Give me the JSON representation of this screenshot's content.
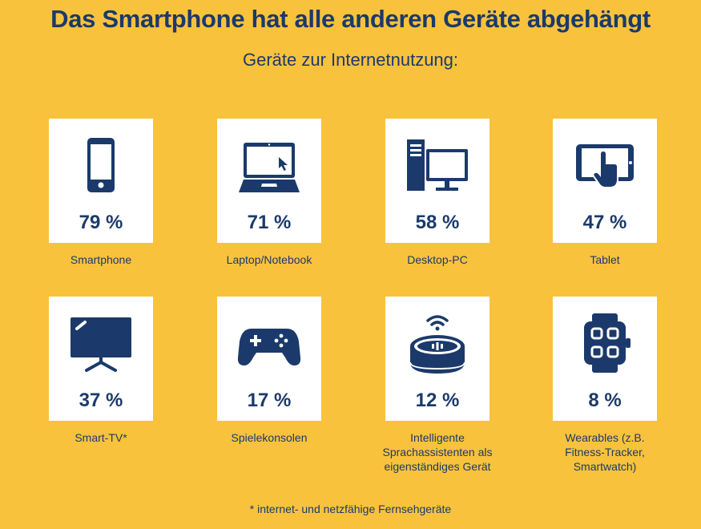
{
  "title": "Das Smartphone hat alle anderen Geräte abgehängt",
  "subtitle": "Geräte zur Internetnutzung:",
  "footnote": "* internet- und netzfähige Fernsehgeräte",
  "colors": {
    "background": "#F9C23C",
    "primary": "#1B3A6B",
    "card": "#FFFFFF"
  },
  "chart_data": {
    "type": "table",
    "title": "Geräte zur Internetnutzung:",
    "unit": "%",
    "categories": [
      "Smartphone",
      "Laptop/Notebook",
      "Desktop-PC",
      "Tablet",
      "Smart-TV*",
      "Spielekonsolen",
      "Intelligente Sprachassistenten als eigenständiges Gerät",
      "Wearables (z.B. Fitness-Tracker, Smartwatch)"
    ],
    "values": [
      79,
      71,
      58,
      47,
      37,
      17,
      12,
      8
    ]
  },
  "devices": [
    {
      "icon": "smartphone-icon",
      "value_label": "79 %",
      "label_lines": [
        "Smartphone"
      ]
    },
    {
      "icon": "laptop-icon",
      "value_label": "71 %",
      "label_lines": [
        "Laptop/Notebook"
      ]
    },
    {
      "icon": "desktop-pc-icon",
      "value_label": "58 %",
      "label_lines": [
        "Desktop-PC"
      ]
    },
    {
      "icon": "tablet-icon",
      "value_label": "47 %",
      "label_lines": [
        "Tablet"
      ]
    },
    {
      "icon": "smart-tv-icon",
      "value_label": "37 %",
      "label_lines": [
        "Smart-TV*"
      ]
    },
    {
      "icon": "gamepad-icon",
      "value_label": "17 %",
      "label_lines": [
        "Spielekonsolen"
      ]
    },
    {
      "icon": "smart-speaker-icon",
      "value_label": "12 %",
      "label_lines": [
        "Intelligente",
        "Sprachassistenten als",
        "eigenständiges Gerät"
      ]
    },
    {
      "icon": "smartwatch-icon",
      "value_label": "8 %",
      "label_lines": [
        "Wearables (z.B.",
        "Fitness-Tracker,",
        "Smartwatch)"
      ]
    }
  ]
}
